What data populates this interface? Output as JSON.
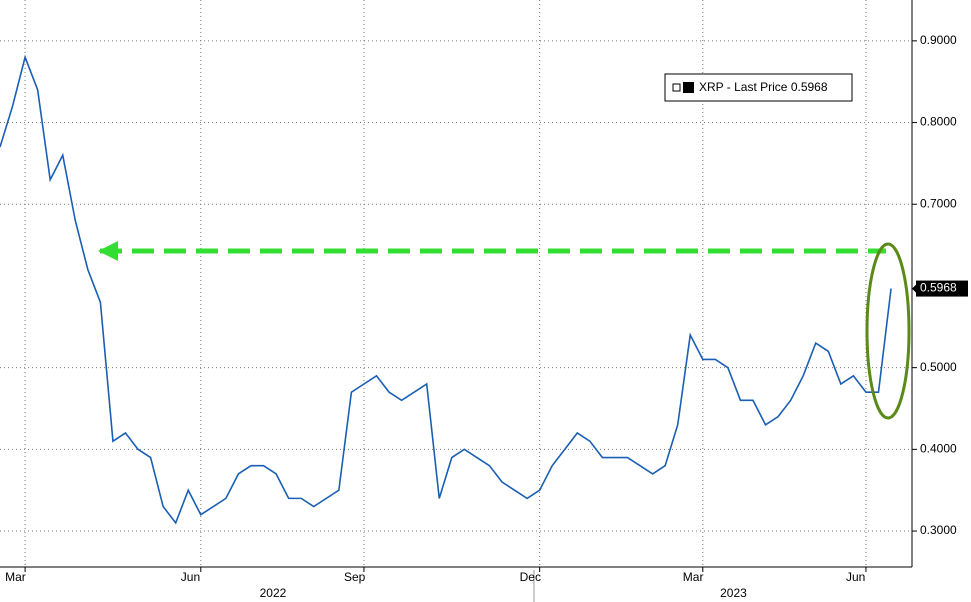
{
  "chart_data": {
    "type": "line",
    "categories": [
      null,
      null,
      "Mar",
      null,
      null,
      null,
      null,
      null,
      null,
      null,
      null,
      null,
      null,
      null,
      null,
      null,
      "Jun",
      null,
      null,
      null,
      null,
      null,
      null,
      null,
      null,
      null,
      null,
      null,
      null,
      "Sep",
      null,
      null,
      null,
      null,
      null,
      null,
      null,
      null,
      null,
      null,
      null,
      null,
      null,
      "Dec",
      null,
      null,
      null,
      null,
      null,
      null,
      null,
      null,
      null,
      null,
      null,
      null,
      "Mar",
      null,
      null,
      null,
      null,
      null,
      null,
      null,
      null,
      null,
      null,
      null,
      null,
      "Jun",
      null,
      null
    ],
    "year_labels": [
      "2022",
      "2023"
    ],
    "series": [
      {
        "name": "XRP - Last Price",
        "color": "#1a5fb4",
        "values": [
          0.77,
          0.82,
          0.88,
          0.84,
          0.73,
          0.76,
          0.68,
          0.62,
          0.58,
          0.41,
          0.42,
          0.4,
          0.39,
          0.33,
          0.31,
          0.35,
          0.32,
          0.33,
          0.34,
          0.37,
          0.38,
          0.38,
          0.37,
          0.34,
          0.34,
          0.33,
          0.34,
          0.35,
          0.47,
          0.48,
          0.49,
          0.47,
          0.46,
          0.47,
          0.48,
          0.34,
          0.39,
          0.4,
          0.39,
          0.38,
          0.36,
          0.35,
          0.34,
          0.35,
          0.38,
          0.4,
          0.42,
          0.41,
          0.39,
          0.39,
          0.39,
          0.38,
          0.37,
          0.38,
          0.43,
          0.54,
          0.51,
          0.51,
          0.5,
          0.46,
          0.46,
          0.43,
          0.44,
          0.46,
          0.49,
          0.53,
          0.52,
          0.48,
          0.49,
          0.47,
          0.47,
          0.5968
        ]
      }
    ],
    "last_price": {
      "value": 0.5968,
      "label": "0.5968"
    },
    "ylim": [
      0.256,
      0.95
    ],
    "yticks": [
      {
        "value": 0.3,
        "label": "0.3000"
      },
      {
        "value": 0.4,
        "label": "0.4000"
      },
      {
        "value": 0.5,
        "label": "0.5000"
      },
      {
        "value": 0.7,
        "label": "0.7000"
      },
      {
        "value": 0.8,
        "label": "0.8000"
      },
      {
        "value": 0.9,
        "label": "0.9000"
      }
    ],
    "grid": true
  }
}
